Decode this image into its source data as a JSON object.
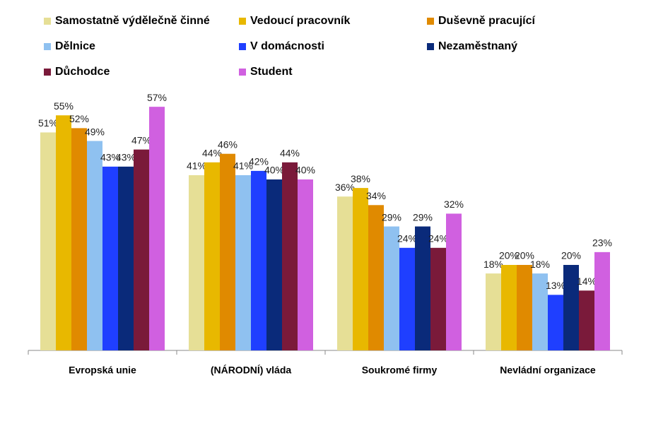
{
  "chart_data": {
    "type": "bar",
    "categories": [
      "Evropská unie",
      "(NÁRODNÍ) vláda",
      "Soukromé firmy",
      "Nevládní organizace"
    ],
    "series": [
      {
        "name": "Samostatně výdělečně činné",
        "color": "#e6df96",
        "values": [
          51,
          41,
          36,
          18
        ],
        "value_labels": [
          "51%",
          "41%",
          "36%",
          "18%"
        ]
      },
      {
        "name": "Vedoucí pracovník",
        "color": "#e8b800",
        "values": [
          55,
          44,
          38,
          20
        ],
        "value_labels": [
          "55%",
          "44%",
          "38%",
          "20%"
        ]
      },
      {
        "name": "Duševně pracující",
        "color": "#e08a00",
        "values": [
          52,
          46,
          34,
          20
        ],
        "value_labels": [
          "52%",
          "46%",
          "34%",
          "20%"
        ]
      },
      {
        "name": "Dělnice",
        "color": "#8fc1f0",
        "values": [
          49,
          41,
          29,
          18
        ],
        "value_labels": [
          "49%",
          "41%",
          "29%",
          "18%"
        ]
      },
      {
        "name": "V domácnosti",
        "color": "#1f3fff",
        "values": [
          43,
          42,
          24,
          13
        ],
        "value_labels": [
          "43%",
          "42%",
          "24%",
          "13%"
        ]
      },
      {
        "name": "Nezaměstnaný",
        "color": "#0a2a7a",
        "values": [
          43,
          40,
          29,
          20
        ],
        "value_labels": [
          "43%",
          "40%",
          "29%",
          "20%"
        ]
      },
      {
        "name": "Důchodce",
        "color": "#7a1a3a",
        "values": [
          47,
          44,
          24,
          14
        ],
        "value_labels": [
          "47%",
          "44%",
          "24%",
          "14%"
        ]
      },
      {
        "name": "Student",
        "color": "#d060e0",
        "values": [
          57,
          40,
          32,
          23
        ],
        "value_labels": [
          "57%",
          "40%",
          "32%",
          "23%"
        ]
      }
    ]
  }
}
